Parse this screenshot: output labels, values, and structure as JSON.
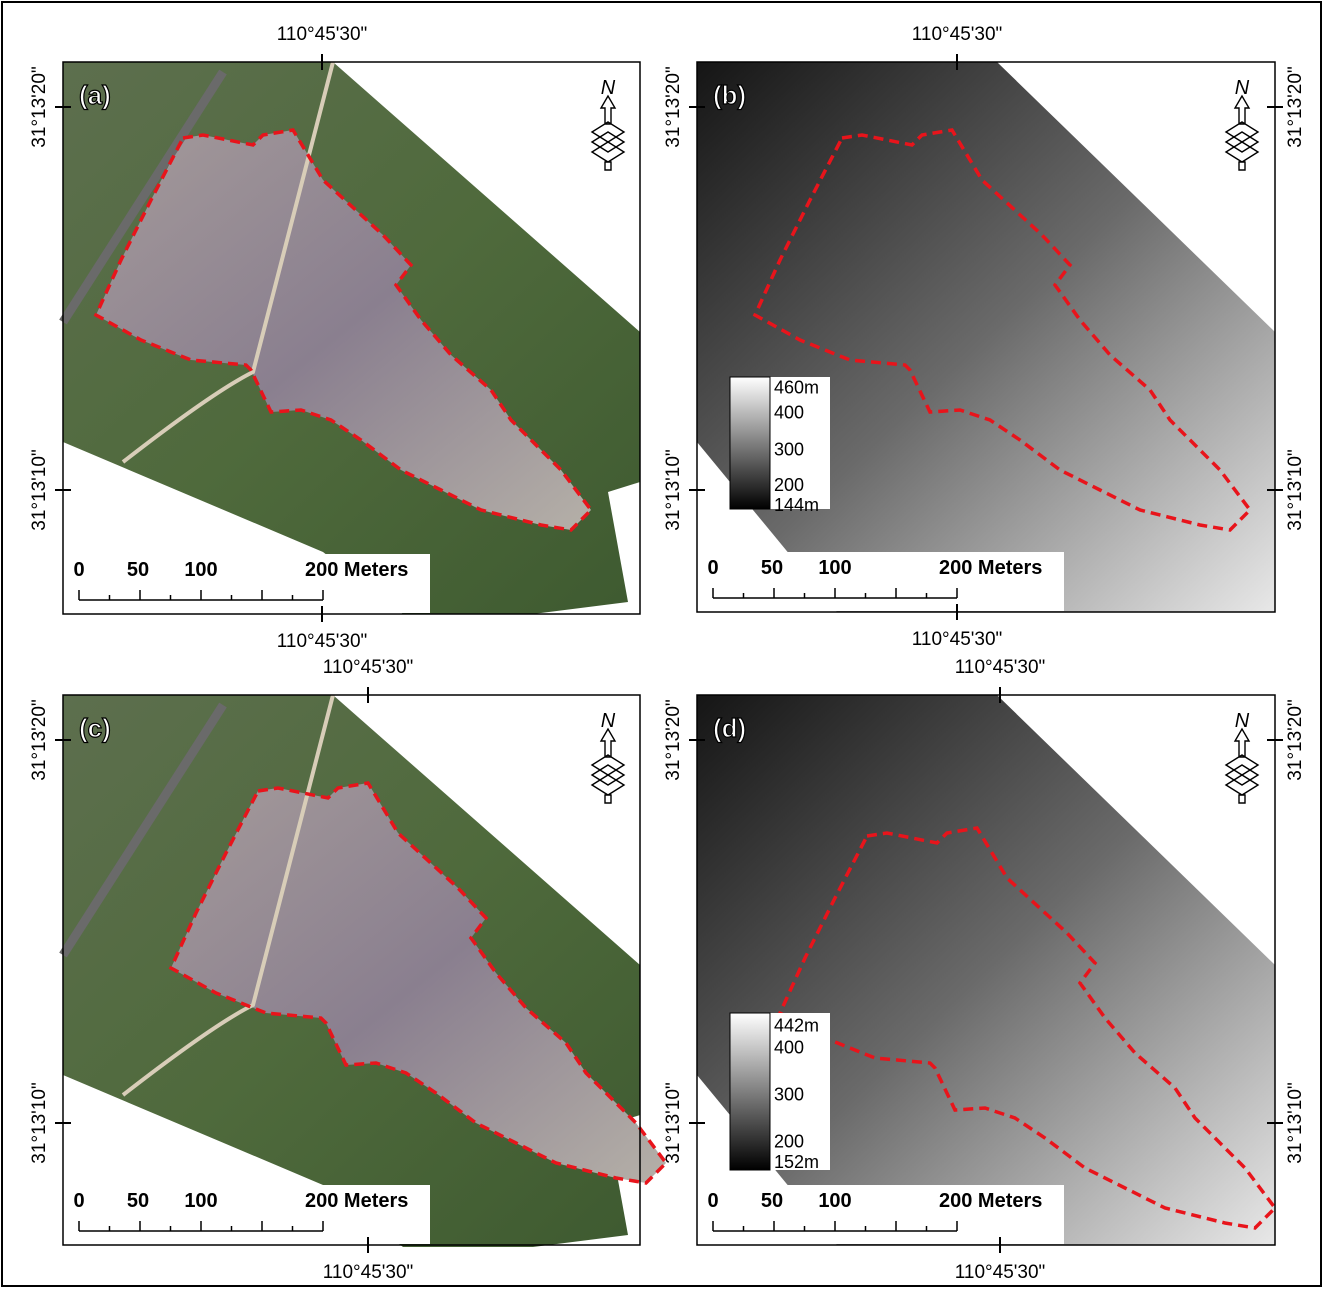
{
  "panels": [
    {
      "label": "(a)",
      "top_coordinate": "110°45'30\"",
      "bottom_coordinate": "110°45'30\"",
      "left_coordinates": [
        "31°13'20\"",
        "31°13'10\""
      ],
      "north": "N",
      "scale_labels": [
        "0",
        "50",
        "100",
        "200 Meters"
      ]
    },
    {
      "label": "(b)",
      "top_coordinate": "110°45'30\"",
      "bottom_coordinate": "110°45'30\"",
      "left_coordinates": [
        "31°13'20\"",
        "31°13'10\""
      ],
      "right_coordinates": [
        "31°13'20\"",
        "31°13'10\""
      ],
      "north": "N",
      "scale_labels": [
        "0",
        "50",
        "100",
        "200 Meters"
      ],
      "legend": [
        "460m",
        "400",
        "300",
        "200",
        "144m"
      ]
    },
    {
      "label": "(c)",
      "top_coordinate": "110°45'30\"",
      "bottom_coordinate": "110°45'30\"",
      "left_coordinates": [
        "31°13'20\"",
        "31°13'10\""
      ],
      "north": "N",
      "scale_labels": [
        "0",
        "50",
        "100",
        "200 Meters"
      ]
    },
    {
      "label": "(d)",
      "top_coordinate": "110°45'30\"",
      "bottom_coordinate": "110°45'30\"",
      "left_coordinates": [
        "31°13'20\"",
        "31°13'10\""
      ],
      "right_coordinates": [
        "31°13'20\"",
        "31°13'10\""
      ],
      "north": "N",
      "scale_labels": [
        "0",
        "50",
        "100",
        "200 Meters"
      ],
      "legend": [
        "442m",
        "400",
        "300",
        "200",
        "152m"
      ]
    }
  ]
}
